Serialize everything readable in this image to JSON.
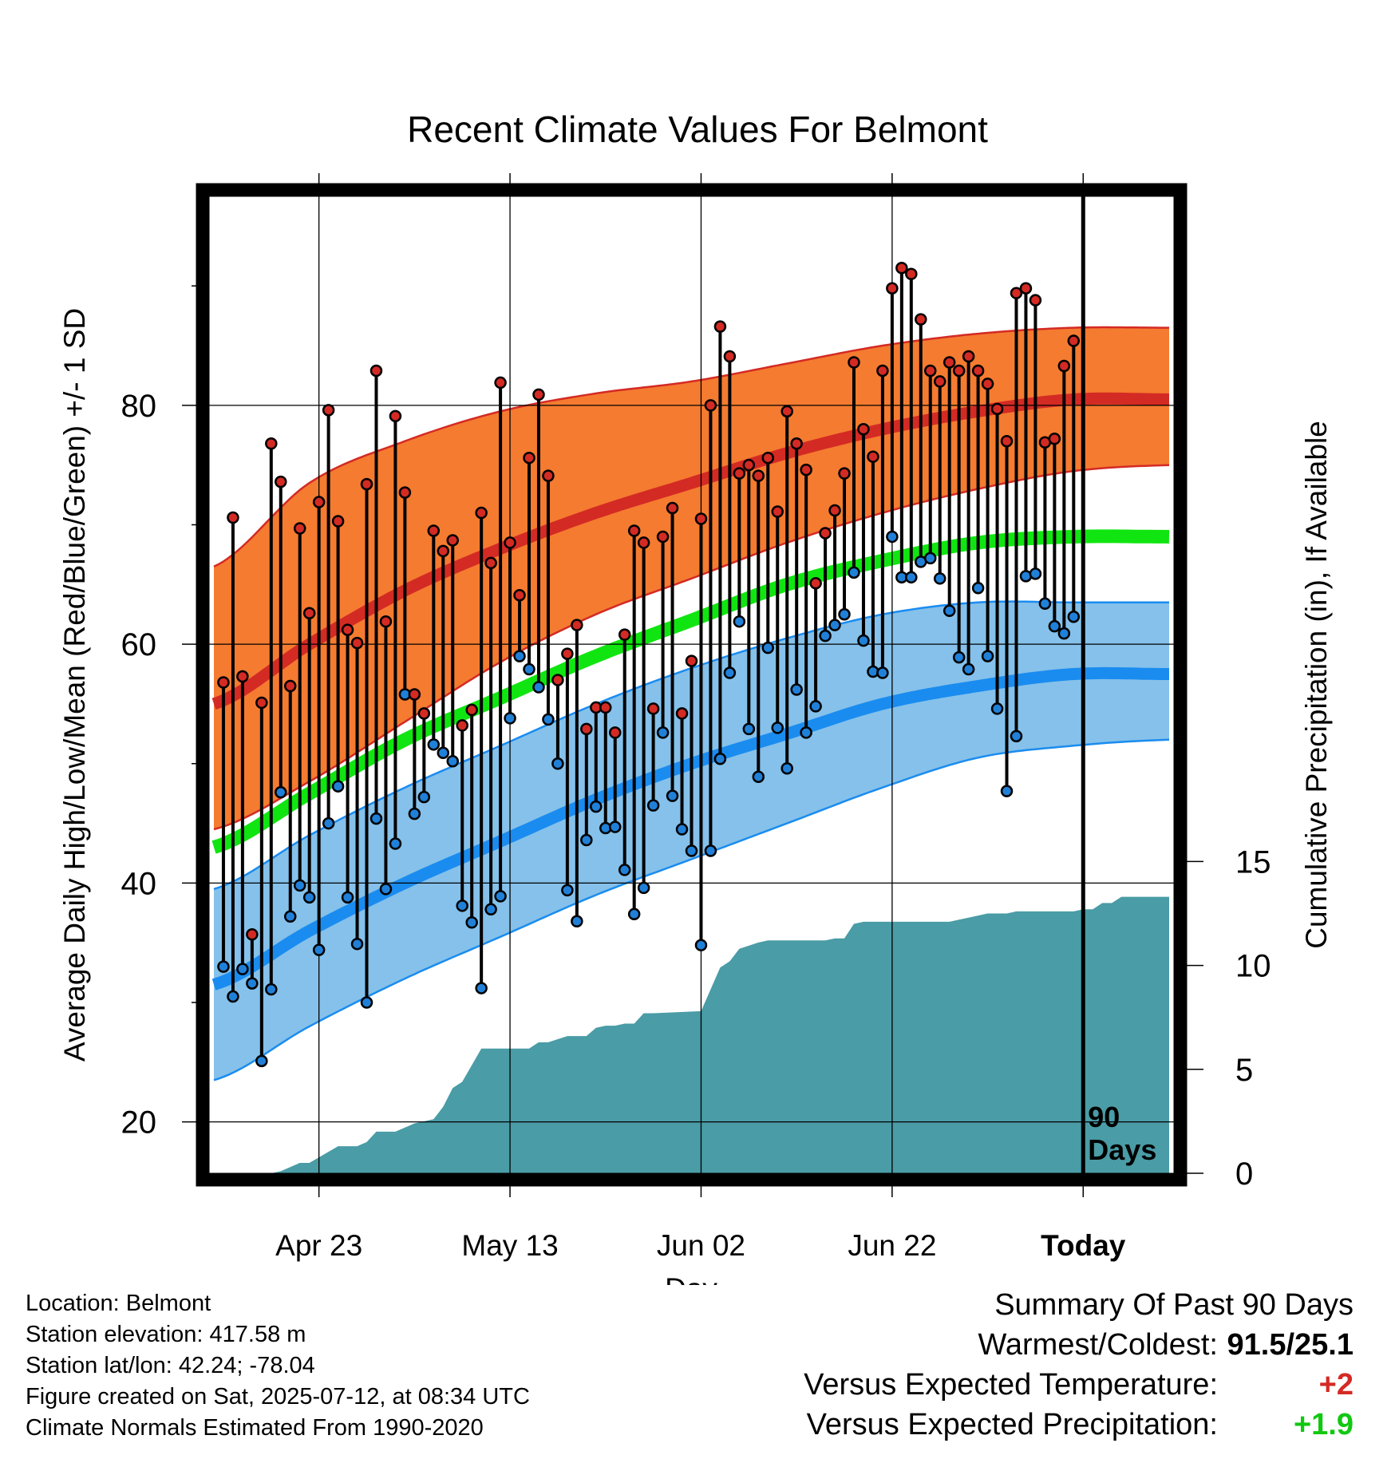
{
  "chart_data": {
    "type": "line",
    "title": "Recent Climate Values For Belmont",
    "xlabel": "Day",
    "ylabel": "Average Daily High/Low/Mean (Red/Blue/Green) +/- 1 SD",
    "y2label": "Cumulative Precipitation (in), If Available",
    "x_ticks": [
      {
        "day": 14,
        "label": "Apr 23"
      },
      {
        "day": 34,
        "label": "May 13"
      },
      {
        "day": 54,
        "label": "Jun 02"
      },
      {
        "day": 74,
        "label": "Jun 22"
      },
      {
        "day": 94,
        "label": "Today"
      }
    ],
    "xlim": [
      2.5,
      103.5
    ],
    "ylim": [
      15.7,
      97.5
    ],
    "y_ticks": [
      20,
      40,
      60,
      80
    ],
    "y2lim": [
      0,
      47
    ],
    "y2_ticks": [
      0,
      5,
      10,
      15
    ],
    "today_marker": {
      "day": 94,
      "label_line1": "90",
      "label_line2": "Days"
    },
    "colors": {
      "high_band": "#f47b30",
      "high_mean": "#d42a24",
      "mean": "#11e511",
      "low_band": "#85c1ea",
      "low_mean": "#1a8cf0",
      "high_dot": "#d42a24",
      "low_dot": "#2080d8",
      "precip": "#4a9ca6"
    },
    "normals": {
      "days": [
        3,
        13,
        23,
        33,
        43,
        53,
        63,
        73,
        83,
        93,
        103
      ],
      "high_mean": [
        55,
        60,
        64.5,
        68,
        71,
        73.5,
        76,
        78,
        79.5,
        80.5,
        80.5
      ],
      "high_upper": [
        66.5,
        73.5,
        77,
        79.5,
        81,
        82,
        83.5,
        85,
        86,
        86.5,
        86.5
      ],
      "high_lower": [
        44.5,
        48.5,
        53.5,
        58.5,
        62.5,
        65.5,
        68.5,
        71,
        73,
        74.5,
        75
      ],
      "mean": [
        43,
        47.5,
        52,
        55.5,
        59,
        62,
        65,
        67,
        68.5,
        69,
        69
      ],
      "low_mean": [
        31.5,
        36,
        40,
        43.5,
        47,
        50,
        52.5,
        55,
        56.5,
        57.5,
        57.5
      ],
      "low_upper": [
        39.5,
        44,
        48,
        51.5,
        55,
        58,
        60.5,
        62.5,
        63.5,
        63.5,
        63.5
      ],
      "low_lower": [
        23.5,
        28,
        32,
        35.5,
        39,
        42,
        45,
        48,
        50.5,
        51.5,
        52
      ]
    },
    "series": [
      {
        "name": "High",
        "values": [
          56.8,
          70.6,
          57.3,
          35.7,
          55.1,
          76.8,
          73.6,
          56.5,
          69.7,
          62.6,
          71.9,
          79.6,
          70.3,
          61.2,
          60.1,
          73.4,
          82.9,
          61.9,
          79.1,
          72.7,
          55.8,
          54.2,
          69.5,
          67.8,
          68.7,
          53.2,
          54.5,
          71.0,
          66.8,
          81.9,
          68.5,
          64.1,
          75.6,
          80.9,
          74.1,
          57.0,
          59.2,
          61.6,
          52.9,
          54.7,
          54.7,
          52.6,
          60.8,
          69.5,
          68.5,
          54.6,
          69.0,
          71.4,
          54.2,
          58.6,
          70.5,
          80.0,
          86.6,
          84.1,
          74.3,
          75.0,
          74.1,
          75.6,
          71.1,
          79.5,
          76.8,
          74.6,
          65.1,
          69.3,
          71.2,
          74.3,
          83.6,
          78.0,
          75.7,
          82.9,
          89.8,
          91.5,
          91.0,
          87.2,
          82.9,
          82.0,
          83.6,
          82.9,
          84.1,
          82.9,
          81.8,
          79.7,
          77.0,
          89.4,
          89.8,
          88.8,
          76.9,
          77.2,
          83.3,
          85.4
        ]
      },
      {
        "name": "Low",
        "values": [
          33.0,
          30.5,
          32.8,
          31.6,
          25.1,
          31.1,
          47.6,
          37.2,
          39.8,
          38.8,
          34.4,
          45.0,
          48.1,
          38.8,
          34.9,
          30.0,
          45.4,
          39.5,
          43.3,
          55.8,
          45.8,
          47.2,
          51.6,
          50.9,
          50.2,
          38.1,
          36.7,
          31.2,
          37.8,
          38.9,
          53.8,
          59.0,
          57.9,
          56.4,
          53.7,
          50.0,
          39.4,
          36.8,
          43.6,
          46.4,
          44.6,
          44.7,
          41.1,
          37.4,
          39.6,
          46.5,
          52.6,
          47.3,
          44.5,
          42.7,
          34.8,
          42.7,
          50.4,
          57.6,
          61.9,
          52.9,
          48.9,
          59.7,
          53.0,
          49.6,
          56.2,
          52.6,
          54.8,
          60.7,
          61.6,
          62.5,
          66.0,
          60.3,
          57.7,
          57.6,
          69.0,
          65.6,
          65.6,
          66.9,
          67.2,
          65.5,
          62.8,
          58.9,
          57.9,
          64.7,
          59.0,
          54.6,
          47.7,
          52.3,
          65.7,
          65.9,
          63.4,
          61.5,
          60.9,
          62.3
        ]
      },
      {
        "name": "Cumulative Precipitation",
        "days": [
          3,
          9,
          10,
          11,
          12,
          13,
          16,
          17,
          18,
          19,
          20,
          21,
          22,
          24,
          26,
          27,
          28,
          29,
          31,
          33,
          34,
          36,
          37,
          38,
          40,
          42,
          43,
          44,
          45,
          46,
          47,
          48,
          49,
          54,
          56,
          57,
          58,
          60,
          61,
          62,
          63,
          64,
          67,
          68,
          69,
          70,
          71,
          72,
          75,
          76,
          78,
          79,
          80,
          81,
          82,
          83,
          84,
          85,
          86,
          87,
          88,
          89,
          90,
          91,
          92,
          93,
          94,
          95,
          96,
          97,
          98,
          99,
          100,
          101,
          102,
          103
        ],
        "values": [
          0,
          0,
          0.1,
          0.3,
          0.5,
          0.5,
          1.3,
          1.3,
          1.3,
          1.5,
          2,
          2,
          2,
          2.4,
          2.6,
          3.2,
          4.1,
          4.4,
          6,
          6,
          6,
          6,
          6.3,
          6.3,
          6.6,
          6.6,
          7,
          7.1,
          7.1,
          7.2,
          7.2,
          7.7,
          7.7,
          7.8,
          9.9,
          10.2,
          10.8,
          11.1,
          11.2,
          11.2,
          11.2,
          11.2,
          11.2,
          11.3,
          11.3,
          12,
          12.1,
          12.1,
          12.1,
          12.1,
          12.1,
          12.1,
          12.1,
          12.2,
          12.3,
          12.4,
          12.5,
          12.5,
          12.5,
          12.6,
          12.6,
          12.6,
          12.6,
          12.6,
          12.6,
          12.6,
          12.7,
          12.7,
          13,
          13,
          13.3,
          13.3,
          13.3,
          13.3,
          13.3,
          13.3
        ]
      }
    ]
  },
  "info": {
    "location": "Location: Belmont",
    "elevation": "Station elevation: 417.58 m",
    "latlon": "Station lat/lon: 42.24; -78.04",
    "created": "Figure created on Sat, 2025-07-12, at 08:34 UTC",
    "normals": "Climate Normals Estimated From 1990-2020"
  },
  "summary": {
    "title": "Summary Of Past 90 Days",
    "warmest_label": "Warmest/Coldest:",
    "warmest_value": "91.5/25.1",
    "temp_label": "Versus Expected Temperature:",
    "temp_value": "+2",
    "temp_color": "#d42a24",
    "precip_label": "Versus Expected Precipitation:",
    "precip_value": "+1.9",
    "precip_color": "#11c811"
  }
}
